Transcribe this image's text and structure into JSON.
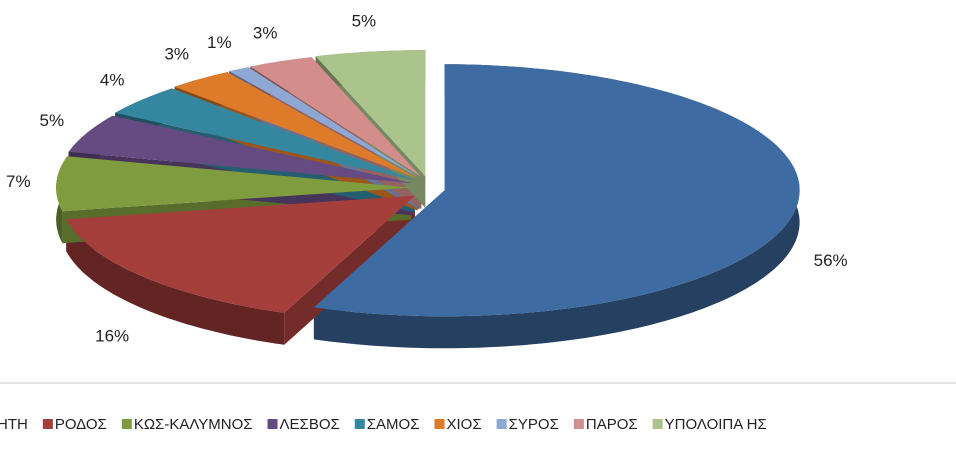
{
  "chart_data": {
    "type": "pie",
    "categories": [
      "ΗΤΗ",
      "ΡΟΔΟΣ",
      "ΚΩΣ-ΚΑΛΥΜΝΟΣ",
      "ΛΕΣΒΟΣ",
      "ΣΑΜΟΣ",
      "ΧΙΟΣ",
      "ΣΥΡΟΣ",
      "ΠΑΡΟΣ",
      "ΥΠΟΛΟΙΠΑ ΗΣ"
    ],
    "values": [
      56,
      16,
      7,
      5,
      4,
      3,
      1,
      3,
      5
    ],
    "value_labels": [
      "56%",
      "16%",
      "7%",
      "5%",
      "4%",
      "3%",
      "1%",
      "3%",
      "5%"
    ],
    "colors": [
      "#3e6ba1",
      "#a53f3c",
      "#7f9c3e",
      "#664b83",
      "#34879f",
      "#dd7b2a",
      "#8fa7d5",
      "#d38e8c",
      "#aac48c"
    ],
    "legend": "bottom"
  }
}
